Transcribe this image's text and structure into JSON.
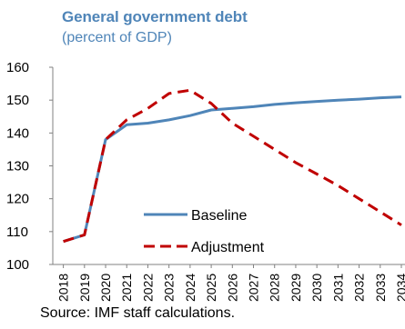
{
  "chart_data": {
    "type": "line",
    "title": "General government debt",
    "subtitle": "(percent of GDP)",
    "source": "Source: IMF staff calculations.",
    "x": [
      "2018",
      "2019",
      "2020",
      "2021",
      "2022",
      "2023",
      "2024",
      "2025",
      "2026",
      "2027",
      "2028",
      "2029",
      "2030",
      "2031",
      "2032",
      "2033",
      "2034"
    ],
    "ylim": [
      100,
      160
    ],
    "yticks": [
      100,
      110,
      120,
      130,
      140,
      150,
      160
    ],
    "grid": false,
    "legend_position": "lower-right",
    "series": [
      {
        "name": "Baseline",
        "style": "solid",
        "color": "#4f85b8",
        "values": [
          107,
          109,
          138,
          142.5,
          143,
          144,
          145.3,
          147,
          147.5,
          148,
          148.7,
          149.2,
          149.6,
          150,
          150.3,
          150.7,
          151
        ]
      },
      {
        "name": "Adjustment",
        "style": "dashed",
        "color": "#c00000",
        "values": [
          107,
          109,
          138,
          144,
          147.5,
          152,
          153,
          149,
          143,
          139,
          135,
          131,
          127.5,
          124,
          120,
          116,
          112
        ]
      }
    ]
  }
}
